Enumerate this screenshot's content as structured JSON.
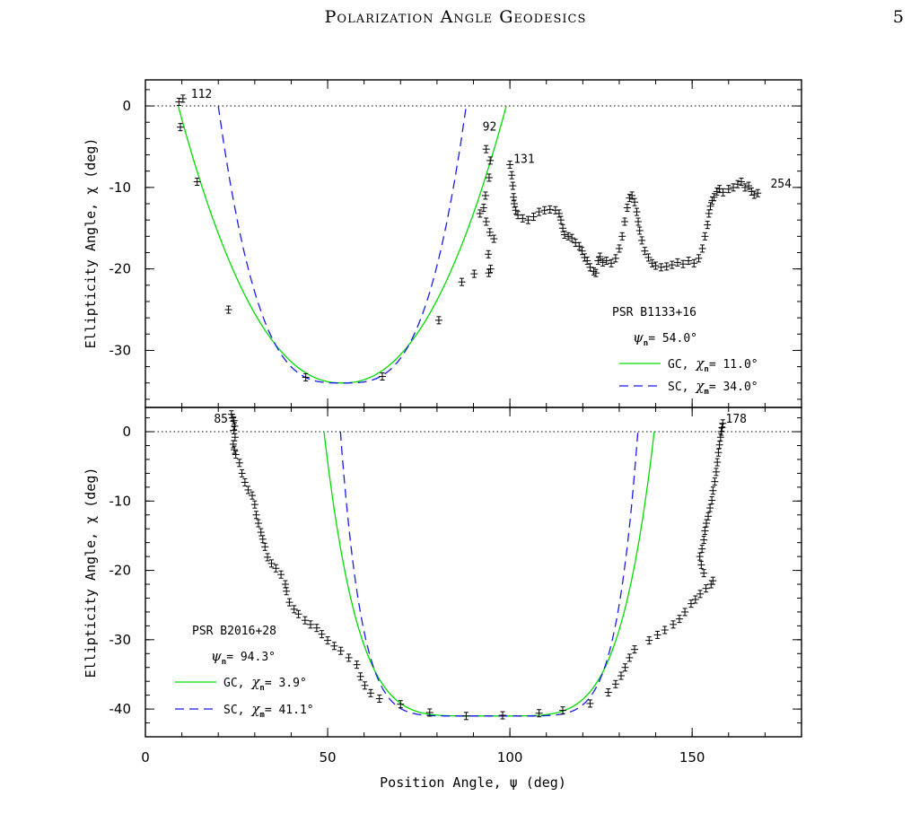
{
  "header": {
    "running_title": "Polarization Angle Geodesics",
    "page_number": "5"
  },
  "colors": {
    "gc_curve": "#00dd00",
    "sc_curve": "#1a1aee",
    "data_points": "#000000"
  },
  "chart_data": [
    {
      "type": "scatter",
      "pulsar": "PSR B1133+16",
      "xlabel": "Position Angle, ψ (deg)",
      "ylabel": "Ellipticity Angle, χ (deg)",
      "xlim": [
        0,
        180
      ],
      "ylim": [
        -37,
        3.2
      ],
      "xticks": [
        0,
        50,
        100,
        150
      ],
      "yticks": [
        0,
        -10,
        -20,
        -30
      ],
      "legend": {
        "psi_label": "ψ",
        "psi_sub": "n",
        "psi_value": "= 54.0°",
        "gc_prefix": "GC,",
        "gc_chi": "χ",
        "gc_sub": "n",
        "gc_value": "= 11.0°",
        "sc_prefix": "SC,",
        "sc_chi": "χ",
        "sc_sub": "m",
        "sc_value": "= 34.0°"
      },
      "psi_n": 54.0,
      "chi_gc": 11.0,
      "chi_sc": 34.0,
      "reference_line_y": 0,
      "annotations": [
        {
          "text": "112",
          "x": 12.5,
          "y": 1.0
        },
        {
          "text": "92",
          "x": 92.5,
          "y": -3.0
        },
        {
          "text": "131",
          "x": 101,
          "y": -7.0
        },
        {
          "text": "254",
          "x": 171.5,
          "y": -10.0
        }
      ],
      "points": [
        [
          9.2,
          0.5
        ],
        [
          10.3,
          0.9
        ],
        [
          9.6,
          -2.6
        ],
        [
          14.2,
          -9.3
        ],
        [
          22.8,
          -25.0
        ],
        [
          44.0,
          -33.3
        ],
        [
          65.0,
          -33.2
        ],
        [
          80.5,
          -26.3
        ],
        [
          93.5,
          -5.3
        ],
        [
          94.6,
          -6.7
        ],
        [
          94.3,
          -8.8
        ],
        [
          93.3,
          -11.0
        ],
        [
          92.8,
          -12.5
        ],
        [
          91.8,
          -13.2
        ],
        [
          94.5,
          -15.5
        ],
        [
          95.6,
          -16.3
        ],
        [
          93.5,
          -14.2
        ],
        [
          94.1,
          -18.2
        ],
        [
          94.7,
          -20.0
        ],
        [
          94.2,
          -20.5
        ],
        [
          90.2,
          -20.6
        ],
        [
          86.8,
          -21.6
        ],
        [
          100.0,
          -7.2
        ],
        [
          100.5,
          -8.5
        ],
        [
          100.8,
          -9.8
        ],
        [
          101.0,
          -11.2
        ],
        [
          101.2,
          -12.0
        ],
        [
          101.6,
          -12.8
        ],
        [
          102.2,
          -13.4
        ],
        [
          103.5,
          -13.8
        ],
        [
          105,
          -14.0
        ],
        [
          106.5,
          -13.6
        ],
        [
          108,
          -13.0
        ],
        [
          109.5,
          -12.8
        ],
        [
          111,
          -12.7
        ],
        [
          112.5,
          -12.8
        ],
        [
          113.5,
          -13.2
        ],
        [
          114,
          -14.0
        ],
        [
          114.5,
          -15.0
        ],
        [
          115,
          -15.8
        ],
        [
          116,
          -16.0
        ],
        [
          117,
          -16.2
        ],
        [
          118,
          -16.8
        ],
        [
          119,
          -17.2
        ],
        [
          119.8,
          -17.8
        ],
        [
          120.5,
          -18.6
        ],
        [
          121.2,
          -19.0
        ],
        [
          122,
          -19.8
        ],
        [
          123,
          -20.3
        ],
        [
          123.6,
          -20.5
        ],
        [
          124.2,
          -19.0
        ],
        [
          124.7,
          -18.5
        ],
        [
          125.5,
          -19.2
        ],
        [
          126.5,
          -19.0
        ],
        [
          127.8,
          -19.3
        ],
        [
          129,
          -18.7
        ],
        [
          130,
          -17.5
        ],
        [
          130.8,
          -16.0
        ],
        [
          131.5,
          -14.2
        ],
        [
          132.2,
          -12.5
        ],
        [
          132.8,
          -11.3
        ],
        [
          133.5,
          -11.0
        ],
        [
          134.2,
          -11.8
        ],
        [
          134.8,
          -13.0
        ],
        [
          135.2,
          -14.2
        ],
        [
          135.6,
          -15.3
        ],
        [
          136.2,
          -16.5
        ],
        [
          137,
          -17.8
        ],
        [
          138,
          -18.6
        ],
        [
          139,
          -19.3
        ],
        [
          140,
          -19.6
        ],
        [
          141.5,
          -19.8
        ],
        [
          143,
          -19.7
        ],
        [
          144.5,
          -19.5
        ],
        [
          146,
          -19.2
        ],
        [
          147.5,
          -19.4
        ],
        [
          149,
          -19.0
        ],
        [
          150.5,
          -19.3
        ],
        [
          151.8,
          -18.7
        ],
        [
          152.8,
          -17.5
        ],
        [
          153.5,
          -16.0
        ],
        [
          154.2,
          -14.6
        ],
        [
          154.6,
          -13.2
        ],
        [
          155,
          -12.3
        ],
        [
          155.5,
          -11.6
        ],
        [
          156,
          -11.2
        ],
        [
          156.8,
          -10.5
        ],
        [
          157.5,
          -10.2
        ],
        [
          158.5,
          -10.6
        ],
        [
          160,
          -10.2
        ],
        [
          161.3,
          -10.0
        ],
        [
          162.5,
          -9.6
        ],
        [
          163.5,
          -9.3
        ],
        [
          164.5,
          -10.0
        ],
        [
          165.5,
          -9.8
        ],
        [
          166.3,
          -10.5
        ],
        [
          167,
          -10.9
        ],
        [
          168,
          -10.7
        ]
      ]
    },
    {
      "type": "scatter",
      "pulsar": "PSR B2016+28",
      "xlabel": "Position Angle, ψ (deg)",
      "ylabel": "Ellipticity Angle, χ (deg)",
      "xlim": [
        0,
        180
      ],
      "ylim": [
        -44,
        3.5
      ],
      "xticks": [
        0,
        50,
        100,
        150
      ],
      "yticks": [
        0,
        -10,
        -20,
        -30,
        -40
      ],
      "legend": {
        "psi_label": "ψ",
        "psi_sub": "n",
        "psi_value": "= 94.3°",
        "gc_prefix": "GC,",
        "gc_chi": "χ",
        "gc_sub": "n",
        "gc_value": "= 3.9°",
        "sc_prefix": "SC,",
        "sc_chi": "χ",
        "sc_sub": "m",
        "sc_value": "= 41.1°"
      },
      "psi_n": 94.3,
      "chi_gc": 3.9,
      "chi_sc": 41.1,
      "reference_line_y": 0,
      "annotations": [
        {
          "text": "85",
          "x": 18.8,
          "y": 1.3
        },
        {
          "text": "178",
          "x": 159.2,
          "y": 1.3
        }
      ],
      "points": [
        [
          23.6,
          2.5
        ],
        [
          23.9,
          2.0
        ],
        [
          24.3,
          1.6
        ],
        [
          24.5,
          0.8
        ],
        [
          24.2,
          0.2
        ],
        [
          24.6,
          -0.8
        ],
        [
          24.1,
          -1.8
        ],
        [
          24.4,
          -2.6
        ],
        [
          24.8,
          -3.3
        ],
        [
          25.8,
          -4.5
        ],
        [
          26.5,
          -6.0
        ],
        [
          27.3,
          -7.3
        ],
        [
          28.2,
          -8.4
        ],
        [
          29.3,
          -9.2
        ],
        [
          30.0,
          -10.5
        ],
        [
          30.4,
          -12.0
        ],
        [
          31.0,
          -13.2
        ],
        [
          31.7,
          -14.5
        ],
        [
          32.2,
          -15.5
        ],
        [
          32.8,
          -16.6
        ],
        [
          33.5,
          -18.1
        ],
        [
          34.6,
          -19.0
        ],
        [
          35.8,
          -19.7
        ],
        [
          37.2,
          -20.6
        ],
        [
          38.4,
          -22.0
        ],
        [
          38.7,
          -23.0
        ],
        [
          39.5,
          -24.6
        ],
        [
          40.8,
          -25.6
        ],
        [
          42.0,
          -26.3
        ],
        [
          43.8,
          -27.2
        ],
        [
          45.3,
          -27.8
        ],
        [
          47.0,
          -28.3
        ],
        [
          48.4,
          -29.2
        ],
        [
          50.0,
          -30.1
        ],
        [
          51.8,
          -30.9
        ],
        [
          53.6,
          -31.6
        ],
        [
          55.8,
          -32.6
        ],
        [
          58.0,
          -33.6
        ],
        [
          59.0,
          -35.3
        ],
        [
          60.2,
          -36.6
        ],
        [
          61.8,
          -37.7
        ],
        [
          64.2,
          -38.5
        ],
        [
          70.0,
          -39.3
        ],
        [
          78.0,
          -40.5
        ],
        [
          88.0,
          -41.0
        ],
        [
          98.0,
          -40.9
        ],
        [
          108.0,
          -40.6
        ],
        [
          114.5,
          -40.2
        ],
        [
          122.0,
          -39.2
        ],
        [
          127.0,
          -37.6
        ],
        [
          129.0,
          -36.4
        ],
        [
          130.5,
          -35.2
        ],
        [
          131.6,
          -34.0
        ],
        [
          132.8,
          -32.6
        ],
        [
          134.2,
          -31.4
        ],
        [
          138.2,
          -30.1
        ],
        [
          140.5,
          -29.3
        ],
        [
          142.5,
          -28.6
        ],
        [
          144.8,
          -27.8
        ],
        [
          146.5,
          -27.0
        ],
        [
          148.0,
          -26.0
        ],
        [
          149.7,
          -24.8
        ],
        [
          150.9,
          -24.2
        ],
        [
          152.2,
          -23.4
        ],
        [
          153.8,
          -22.6
        ],
        [
          155.2,
          -22.0
        ],
        [
          155.7,
          -21.5
        ],
        [
          153.2,
          -20.4
        ],
        [
          152.5,
          -19.2
        ],
        [
          152.1,
          -18.0
        ],
        [
          152.7,
          -16.9
        ],
        [
          153.2,
          -15.6
        ],
        [
          153.5,
          -14.3
        ],
        [
          153.9,
          -13.2
        ],
        [
          154.4,
          -12.2
        ],
        [
          154.9,
          -11.0
        ],
        [
          155.4,
          -9.9
        ],
        [
          155.7,
          -8.5
        ],
        [
          156.2,
          -7.2
        ],
        [
          156.6,
          -5.8
        ],
        [
          156.9,
          -4.4
        ],
        [
          157.2,
          -3.0
        ],
        [
          157.5,
          -1.9
        ],
        [
          157.8,
          -0.8
        ],
        [
          158.0,
          0.0
        ],
        [
          158.2,
          0.6
        ],
        [
          158.4,
          1.2
        ]
      ]
    }
  ]
}
